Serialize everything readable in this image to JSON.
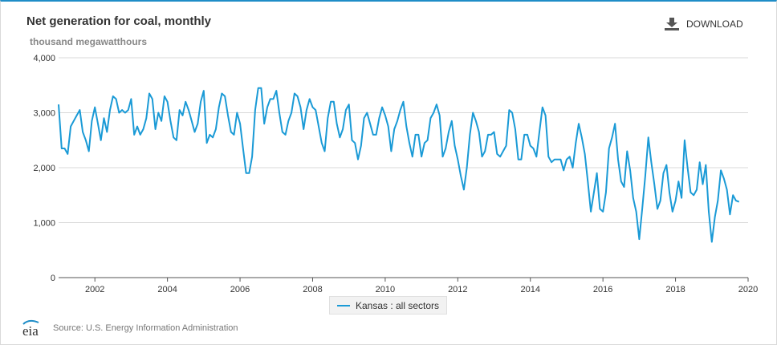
{
  "header": {
    "title": "Net generation for coal, monthly",
    "units": "thousand megawatthours",
    "download_label": "DOWNLOAD"
  },
  "source": {
    "logo_text": "eia",
    "text": "Source: U.S. Energy Information Administration"
  },
  "colors": {
    "series": "#1a9ad6",
    "accent": "#1f8dc7"
  },
  "icons": {
    "download": "download-icon",
    "logo": "eia-logo-icon"
  },
  "chart_data": {
    "type": "line",
    "title": "Net generation for coal, monthly",
    "ylabel": "thousand megawatthours",
    "xlabel": "",
    "x_start": "2001-01",
    "x_frequency": "monthly",
    "xlim": [
      "2001-01",
      "2020-01"
    ],
    "ylim": [
      0,
      4000
    ],
    "x_ticks": [
      "2002",
      "2004",
      "2006",
      "2008",
      "2010",
      "2012",
      "2014",
      "2016",
      "2018",
      "2020"
    ],
    "y_ticks": [
      "0",
      "1,000",
      "2,000",
      "3,000",
      "4,000"
    ],
    "grid": true,
    "legend_position": "bottom-center",
    "series": [
      {
        "name": "Kansas : all sectors",
        "values": [
          3150,
          2350,
          2350,
          2250,
          2750,
          2850,
          2950,
          3050,
          2650,
          2500,
          2300,
          2850,
          3100,
          2800,
          2500,
          2900,
          2650,
          3050,
          3300,
          3250,
          3000,
          3050,
          3000,
          3050,
          3250,
          2600,
          2750,
          2600,
          2700,
          2900,
          3350,
          3250,
          2700,
          3000,
          2850,
          3300,
          3200,
          2850,
          2550,
          2500,
          3050,
          2950,
          3200,
          3050,
          2850,
          2650,
          2800,
          3200,
          3400,
          2450,
          2600,
          2550,
          2700,
          3100,
          3350,
          3300,
          2950,
          2650,
          2600,
          3000,
          2800,
          2350,
          1900,
          1900,
          2200,
          3050,
          3450,
          3450,
          2800,
          3100,
          3250,
          3250,
          3400,
          3000,
          2650,
          2600,
          2850,
          3000,
          3350,
          3300,
          3100,
          2700,
          3050,
          3250,
          3100,
          3050,
          2750,
          2450,
          2300,
          2900,
          3200,
          3200,
          2800,
          2550,
          2700,
          3050,
          3150,
          2500,
          2450,
          2150,
          2400,
          2900,
          3000,
          2800,
          2600,
          2600,
          2900,
          3100,
          2950,
          2750,
          2300,
          2700,
          2850,
          3050,
          3200,
          2750,
          2450,
          2200,
          2600,
          2600,
          2200,
          2450,
          2500,
          2900,
          3000,
          3150,
          2950,
          2200,
          2350,
          2650,
          2850,
          2400,
          2150,
          1850,
          1600,
          2000,
          2600,
          3000,
          2850,
          2650,
          2200,
          2300,
          2600,
          2600,
          2650,
          2250,
          2200,
          2300,
          2400,
          3050,
          3000,
          2700,
          2150,
          2150,
          2600,
          2600,
          2400,
          2350,
          2200,
          2650,
          3100,
          2950,
          2200,
          2100,
          2150,
          2150,
          2150,
          1950,
          2150,
          2200,
          2000,
          2450,
          2800,
          2550,
          2250,
          1750,
          1200,
          1550,
          1900,
          1250,
          1200,
          1550,
          2350,
          2550,
          2800,
          2150,
          1750,
          1650,
          2300,
          1950,
          1450,
          1200,
          700,
          1250,
          1850,
          2550,
          2100,
          1700,
          1250,
          1400,
          1900,
          2050,
          1550,
          1200,
          1400,
          1750,
          1450,
          2500,
          2000,
          1550,
          1500,
          1600,
          2100,
          1700,
          2050,
          1200,
          650,
          1100,
          1400,
          1950,
          1800,
          1600,
          1150,
          1500,
          1400,
          1380
        ]
      }
    ]
  }
}
